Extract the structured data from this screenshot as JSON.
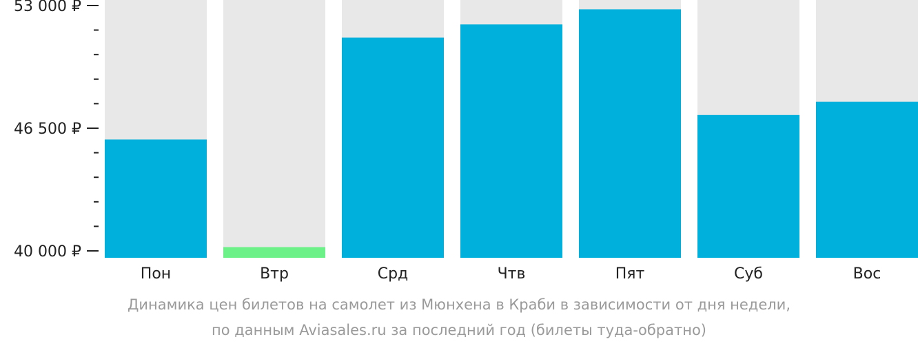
{
  "chart_data": {
    "type": "bar",
    "categories": [
      "Пон",
      "Втр",
      "Срд",
      "Чтв",
      "Пят",
      "Суб",
      "Вос"
    ],
    "values": [
      45900,
      40200,
      51300,
      52000,
      52800,
      47200,
      47900
    ],
    "y_tick_labels": [
      "53 000 ₽",
      "46 500 ₽",
      "40 000 ₽"
    ],
    "y_tick_values": [
      53000,
      46500,
      40000
    ],
    "ylim": [
      40000,
      53000
    ],
    "grid": false,
    "title": "Динамика цен билетов на самолет из Мюнхена в Краби в зависимости от дня недели,",
    "subtitle": "по данным Aviasales.ru за последний год (билеты туда-обратно)"
  },
  "colors": {
    "bar": "#00b0dc",
    "bar_lowest": "#6cf088",
    "bar_background": "#e8e8e8",
    "axis": "#222222",
    "caption": "#9a9a9a"
  }
}
